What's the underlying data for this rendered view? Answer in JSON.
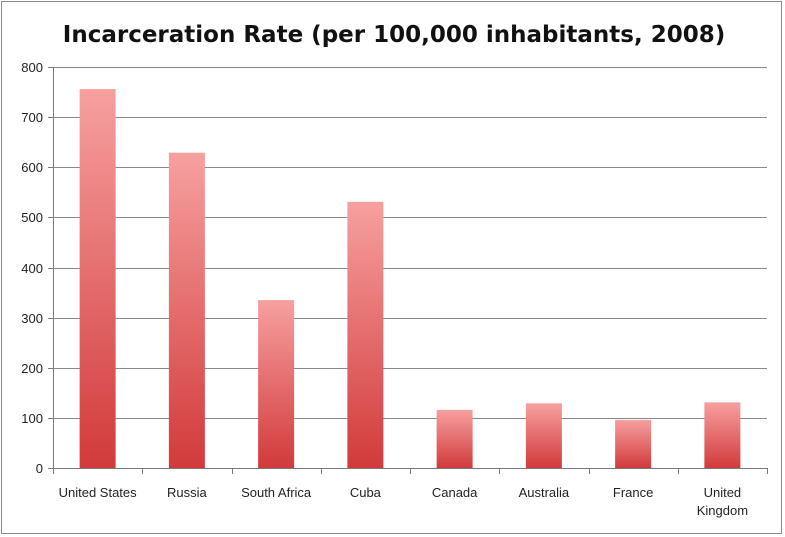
{
  "chart_data": {
    "type": "bar",
    "title": "Incarceration Rate (per 100,000 inhabitants, 2008)",
    "xlabel": "",
    "ylabel": "",
    "categories": [
      "United States",
      "Russia",
      "South Africa",
      "Cuba",
      "Canada",
      "Australia",
      "France",
      "United Kingdom"
    ],
    "category_label_lines": [
      [
        "United States"
      ],
      [
        "Russia"
      ],
      [
        "South Africa"
      ],
      [
        "Cuba"
      ],
      [
        "Canada"
      ],
      [
        "Australia"
      ],
      [
        "France"
      ],
      [
        "United",
        "Kingdom"
      ]
    ],
    "values": [
      756,
      629,
      335,
      531,
      116,
      129,
      96,
      131
    ],
    "ylim": [
      0,
      800
    ],
    "yticks": [
      0,
      100,
      200,
      300,
      400,
      500,
      600,
      700,
      800
    ],
    "grid": true,
    "legend": "none",
    "colors": {
      "bar_top": "#f7a0a0",
      "bar_bottom": "#d23a3a",
      "grid": "#8a8a8a",
      "axis": "#7a7a7a"
    }
  }
}
